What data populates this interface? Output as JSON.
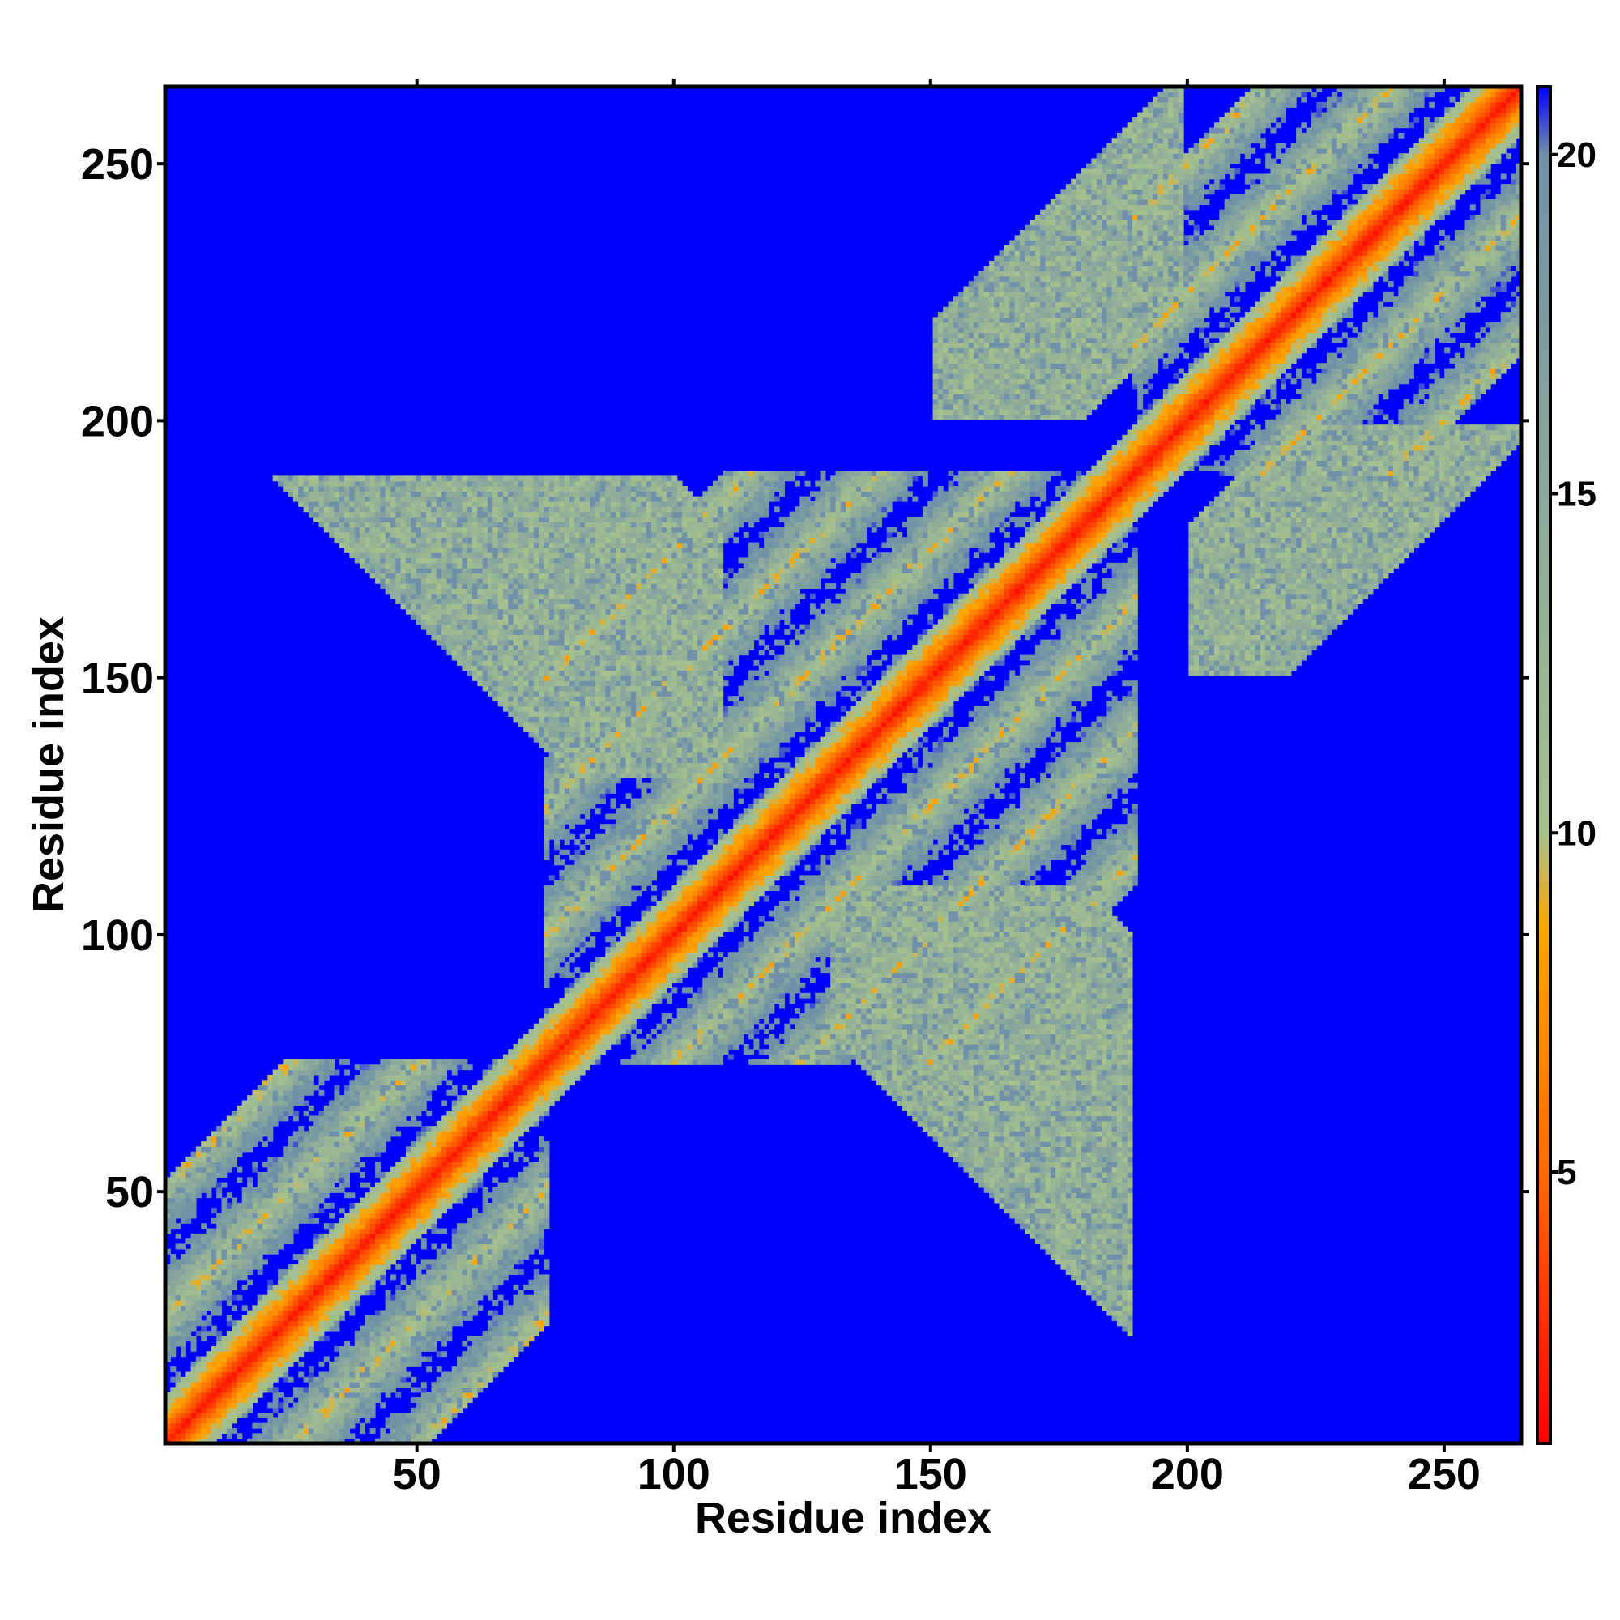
{
  "chart_data": {
    "type": "heatmap",
    "title": "",
    "xlabel": "Residue index",
    "ylabel": "Residue index",
    "xlim": [
      1,
      265
    ],
    "ylim": [
      1,
      265
    ],
    "x_ticks": [
      50,
      100,
      150,
      200,
      250
    ],
    "y_ticks": [
      50,
      100,
      150,
      200,
      250
    ],
    "n_residues": 265,
    "colorbar": {
      "range": [
        1,
        21
      ],
      "ticks": [
        5,
        10,
        15,
        20
      ],
      "colors": [
        "#ff0000",
        "#ff6a00",
        "#ffa500",
        "#a7c28e",
        "#6f90a8",
        "#0000ff"
      ],
      "color_stops": [
        1,
        5,
        8.6,
        10,
        20,
        21
      ]
    },
    "structure": {
      "diagonal": "contact band along residue i = j",
      "segments": [
        {
          "start": 1,
          "end": 75
        },
        {
          "start": 75,
          "end": 190
        },
        {
          "start": 190,
          "end": 265
        }
      ]
    }
  }
}
